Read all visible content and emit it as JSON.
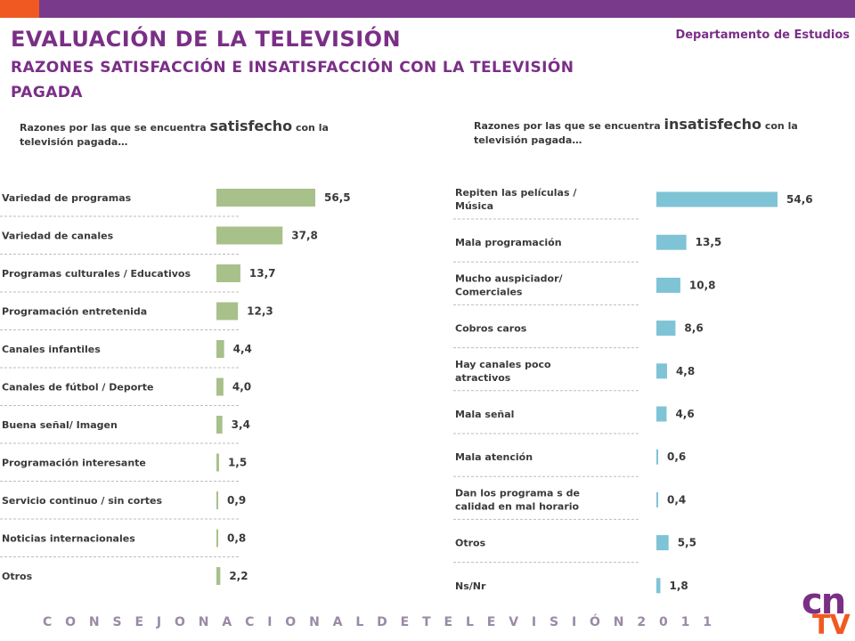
{
  "header": {
    "title": "EVALUACIÓN DE LA TELEVISIÓN",
    "subtitle": "RAZONES SATISFACCIÓN E INSATISFACCIÓN CON LA TELEVISIÓN PAGADA",
    "department": "Departamento de Estudios"
  },
  "left_intro": {
    "before": "Razones por las que se encuentra ",
    "keyword": "satisfecho",
    "after": " con la televisión pagada…"
  },
  "right_intro": {
    "before": "Razones por las que se encuentra ",
    "keyword": "insatisfecho",
    "after": " con la televisión pagada…"
  },
  "footer": {
    "text": "C O N S E J O   N A C I O N A L   D E   T E L E V I S I Ó N   2 0 1 1"
  },
  "logo": {
    "top": "cn",
    "bottom": "TV"
  },
  "colors": {
    "header_bar": "#7a3a8c",
    "accent": "#f05a22",
    "title": "#7a2f86",
    "satisfied_bar": "#a8c08a",
    "dissatisfied_bar": "#7ec3d6"
  },
  "chart_data": [
    {
      "type": "bar",
      "orientation": "horizontal",
      "categories": [
        "Variedad de programas",
        "Variedad de canales",
        "Programas culturales / Educativos",
        "Programación entretenida",
        "Canales infantiles",
        "Canales de fútbol / Deporte",
        "Buena señal/ Imagen",
        "Programación interesante",
        "Servicio continuo / sin cortes",
        "Noticias internacionales",
        "Otros"
      ],
      "values": [
        56.5,
        37.8,
        13.7,
        12.3,
        4.4,
        4.0,
        3.4,
        1.5,
        0.9,
        0.8,
        2.2
      ],
      "value_labels": [
        "56,5",
        "37,8",
        "13,7",
        "12,3",
        "4,4",
        "4,0",
        "3,4",
        "1,5",
        "0,9",
        "0,8",
        "2,2"
      ],
      "color": "#a8c08a",
      "grid": false
    },
    {
      "type": "bar",
      "orientation": "horizontal",
      "categories": [
        "Repiten las películas / Música",
        "Mala programación",
        "Mucho auspiciador/ Comerciales",
        "Cobros caros",
        "Hay canales poco atractivos",
        "Mala señal",
        "Mala atención",
        "Dan los programa s de calidad en mal horario",
        "Otros",
        "Ns/Nr"
      ],
      "values": [
        54.6,
        13.5,
        10.8,
        8.6,
        4.8,
        4.6,
        0.6,
        0.4,
        5.5,
        1.8
      ],
      "value_labels": [
        "54,6",
        "13,5",
        "10,8",
        "8,6",
        "4,8",
        "4,6",
        "0,6",
        "0,4",
        "5,5",
        "1,8"
      ],
      "color": "#7ec3d6",
      "grid": false
    }
  ]
}
